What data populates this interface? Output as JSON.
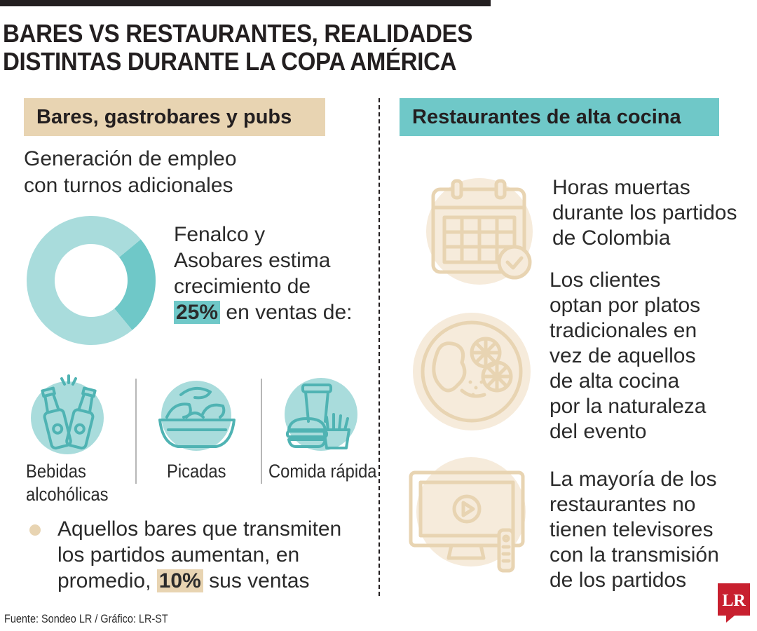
{
  "headline": {
    "line1": "BARES VS RESTAURANTES, REALIDADES",
    "line2": "DISTINTAS DURANTE LA COPA AMÉRICA"
  },
  "left": {
    "tag": "Bares, gastrobares y pubs",
    "lead_line1": "Generación de empleo",
    "lead_line2": "con turnos adicionales",
    "estimate": {
      "line1": "Fenalco y",
      "line2": "Asobares estima",
      "line3": "crecimiento de",
      "pct": "25%",
      "line4_rest": " en ventas de:"
    },
    "categories": [
      {
        "label_line1": "Bebidas",
        "label_line2": "alcohólicas",
        "icon": "beer-bottles-icon"
      },
      {
        "label_line1": "Picadas",
        "label_line2": "",
        "icon": "snack-bowl-icon"
      },
      {
        "label_line1": "Comida rápida",
        "label_line2": "",
        "icon": "fast-food-icon"
      }
    ],
    "bullet": {
      "line1": "Aquellos bares que transmiten",
      "line2": "los partidos aumentan, en",
      "line3_before": "promedio, ",
      "pct": "10%",
      "line3_after": " sus ventas"
    }
  },
  "right": {
    "tag": "Restaurantes de alta cocina",
    "items": [
      {
        "icon": "calendar-icon",
        "lines": [
          "Horas muertas",
          "durante los partidos",
          "de Colombia"
        ]
      },
      {
        "icon": "food-plate-icon",
        "lines": [
          "Los clientes",
          "optan por platos",
          "tradicionales en",
          "vez de aquellos",
          "de alta cocina",
          "por la naturaleza",
          "del evento"
        ]
      },
      {
        "icon": "television-icon",
        "lines": [
          "La mayoría de los",
          "restaurantes no",
          "tienen televisores",
          "con la transmisión",
          "de los partidos"
        ]
      }
    ]
  },
  "chart_data": {
    "type": "pie",
    "categories": [
      "crecimiento",
      ""
    ],
    "values": [
      25,
      75
    ]
  },
  "colors": {
    "teal": "#6fc8c8",
    "teal_light": "#a9dcdc",
    "beige": "#e8d4b2",
    "beige_light": "#f6ebdb",
    "dark": "#231f20"
  },
  "footer": {
    "source": "Fuente: Sondeo LR / Gráfico: LR-ST",
    "logo": "LR"
  }
}
